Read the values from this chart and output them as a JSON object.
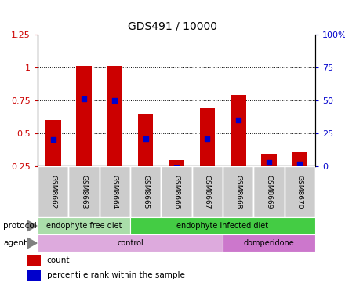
{
  "title": "GDS491 / 10000",
  "samples": [
    "GSM8662",
    "GSM8663",
    "GSM8664",
    "GSM8665",
    "GSM8666",
    "GSM8667",
    "GSM8668",
    "GSM8669",
    "GSM8670"
  ],
  "counts": [
    0.6,
    1.01,
    1.01,
    0.65,
    0.3,
    0.69,
    0.79,
    0.34,
    0.36
  ],
  "percentiles": [
    0.45,
    0.76,
    0.75,
    0.46,
    0.24,
    0.46,
    0.6,
    0.28,
    0.27
  ],
  "bar_color": "#cc0000",
  "dot_color": "#0000cc",
  "ylim_left": [
    0.25,
    1.25
  ],
  "ylim_right": [
    0,
    100
  ],
  "yticks_left": [
    0.25,
    0.5,
    0.75,
    1.0,
    1.25
  ],
  "yticks_right": [
    0,
    25,
    50,
    75,
    100
  ],
  "ytick_labels_left": [
    "0.25",
    "0.5",
    "0.75",
    "1",
    "1.25"
  ],
  "ytick_labels_right": [
    "0",
    "25",
    "50",
    "75",
    "100%"
  ],
  "protocol_groups": [
    {
      "label": "endophyte free diet",
      "start": 0,
      "end": 3,
      "color": "#aaddaa"
    },
    {
      "label": "endophyte infected diet",
      "start": 3,
      "end": 9,
      "color": "#44cc44"
    }
  ],
  "agent_groups": [
    {
      "label": "control",
      "start": 0,
      "end": 6,
      "color": "#ddaadd"
    },
    {
      "label": "domperidone",
      "start": 6,
      "end": 9,
      "color": "#cc77cc"
    }
  ],
  "protocol_label": "protocol",
  "agent_label": "agent",
  "legend_count_label": "count",
  "legend_percentile_label": "percentile rank within the sample",
  "bar_width": 0.5,
  "grid_color": "black",
  "tick_color_left": "#cc0000",
  "tick_color_right": "#0000cc",
  "sample_area_color": "#cccccc",
  "title_fontsize": 10,
  "axis_fontsize": 8,
  "label_fontsize": 8
}
